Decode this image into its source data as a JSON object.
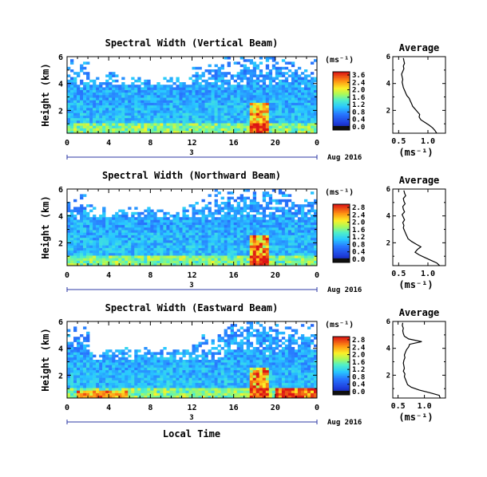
{
  "figure": {
    "local_time_label": "Local Time",
    "date_label": "Aug 2016",
    "day_label": "3"
  },
  "chart_data": [
    {
      "type": "heatmap",
      "title": "Spectral Width (Vertical Beam)",
      "ylabel": "Height (km)",
      "xlabel": "Local Time",
      "x_ticks": [
        "0",
        "4",
        "8",
        "12",
        "16",
        "20",
        "0"
      ],
      "y_ticks": [
        "6",
        "4",
        "2"
      ],
      "xlim": [
        0,
        24
      ],
      "ylim": [
        0.3,
        6
      ],
      "colorbar": {
        "unit": "(ms⁻¹)",
        "ticks": [
          "3.6",
          "2.4",
          "2.0",
          "1.6",
          "1.2",
          "0.8",
          "0.4",
          "0.0"
        ]
      },
      "profile": {
        "title": "Average",
        "xlabel": "(ms⁻¹)",
        "x_ticks": [
          "0.5",
          "1.0"
        ],
        "y_ticks": [
          "6",
          "4",
          "2"
        ],
        "xlim": [
          0.4,
          1.3
        ],
        "heights": [
          0.3,
          0.5,
          0.7,
          0.9,
          1.1,
          1.3,
          1.5,
          1.7,
          1.9,
          2.1,
          2.3,
          2.5,
          2.7,
          2.9,
          3.1,
          3.3,
          3.5,
          3.7,
          3.9,
          4.1,
          4.3,
          4.5,
          4.7,
          4.9,
          5.1,
          5.3,
          5.5,
          5.7,
          5.9
        ],
        "values": [
          1.15,
          1.12,
          1.08,
          1.02,
          0.95,
          0.88,
          0.85,
          0.86,
          0.82,
          0.78,
          0.74,
          0.72,
          0.7,
          0.68,
          0.64,
          0.62,
          0.6,
          0.58,
          0.57,
          0.56,
          0.57,
          0.56,
          0.55,
          0.57,
          0.59,
          0.58,
          0.6,
          0.59,
          0.58
        ]
      }
    },
    {
      "type": "heatmap",
      "title": "Spectral Width (Northward Beam)",
      "ylabel": "Height (km)",
      "xlabel": "Local Time",
      "x_ticks": [
        "0",
        "4",
        "8",
        "12",
        "16",
        "20",
        "0"
      ],
      "y_ticks": [
        "6",
        "4",
        "2"
      ],
      "xlim": [
        0,
        24
      ],
      "ylim": [
        0.3,
        6
      ],
      "colorbar": {
        "unit": "(ms⁻¹)",
        "ticks": [
          "2.8",
          "2.4",
          "2.0",
          "1.6",
          "1.2",
          "0.8",
          "0.4",
          "0.0"
        ]
      },
      "profile": {
        "title": "Average",
        "xlabel": "(ms⁻¹)",
        "x_ticks": [
          "0.5",
          "1.0"
        ],
        "y_ticks": [
          "6",
          "4",
          "2"
        ],
        "xlim": [
          0.4,
          1.3
        ],
        "heights": [
          0.3,
          0.5,
          0.7,
          0.9,
          1.1,
          1.3,
          1.5,
          1.7,
          1.9,
          2.1,
          2.3,
          2.5,
          2.7,
          2.9,
          3.1,
          3.3,
          3.5,
          3.7,
          3.9,
          4.1,
          4.3,
          4.5,
          4.7,
          4.9,
          5.1,
          5.3,
          5.5,
          5.7,
          5.9
        ],
        "values": [
          1.2,
          1.15,
          1.05,
          0.95,
          0.85,
          0.78,
          0.82,
          0.88,
          0.8,
          0.72,
          0.66,
          0.64,
          0.62,
          0.6,
          0.58,
          0.59,
          0.57,
          0.6,
          0.58,
          0.56,
          0.6,
          0.58,
          0.57,
          0.61,
          0.59,
          0.58,
          0.62,
          0.6,
          0.59
        ]
      }
    },
    {
      "type": "heatmap",
      "title": "Spectral Width (Eastward Beam)",
      "ylabel": "Height (km)",
      "xlabel": "Local Time",
      "x_ticks": [
        "0",
        "4",
        "8",
        "12",
        "16",
        "20",
        "0"
      ],
      "y_ticks": [
        "6",
        "4",
        "2"
      ],
      "xlim": [
        0,
        24
      ],
      "ylim": [
        0.3,
        6
      ],
      "colorbar": {
        "unit": "(ms⁻¹)",
        "ticks": [
          "2.8",
          "2.4",
          "2.0",
          "1.6",
          "1.2",
          "0.8",
          "0.4",
          "0.0"
        ]
      },
      "profile": {
        "title": "Average",
        "xlabel": "(ms⁻¹)",
        "x_ticks": [
          "0.5",
          "1.0"
        ],
        "y_ticks": [
          "6",
          "4",
          "2"
        ],
        "xlim": [
          0.4,
          1.4
        ],
        "heights": [
          0.3,
          0.5,
          0.7,
          0.9,
          1.1,
          1.3,
          1.5,
          1.7,
          1.9,
          2.1,
          2.3,
          2.5,
          2.7,
          2.9,
          3.1,
          3.3,
          3.5,
          3.7,
          3.9,
          4.1,
          4.3,
          4.5,
          4.7,
          4.9,
          5.1,
          5.3,
          5.5,
          5.7,
          5.9
        ],
        "values": [
          1.3,
          1.28,
          1.1,
          0.9,
          0.75,
          0.68,
          0.66,
          0.64,
          0.62,
          0.63,
          0.6,
          0.62,
          0.61,
          0.6,
          0.61,
          0.63,
          0.62,
          0.64,
          0.66,
          0.7,
          0.72,
          0.95,
          0.7,
          0.62,
          0.6,
          0.59,
          0.6,
          0.58,
          0.59
        ]
      }
    }
  ]
}
